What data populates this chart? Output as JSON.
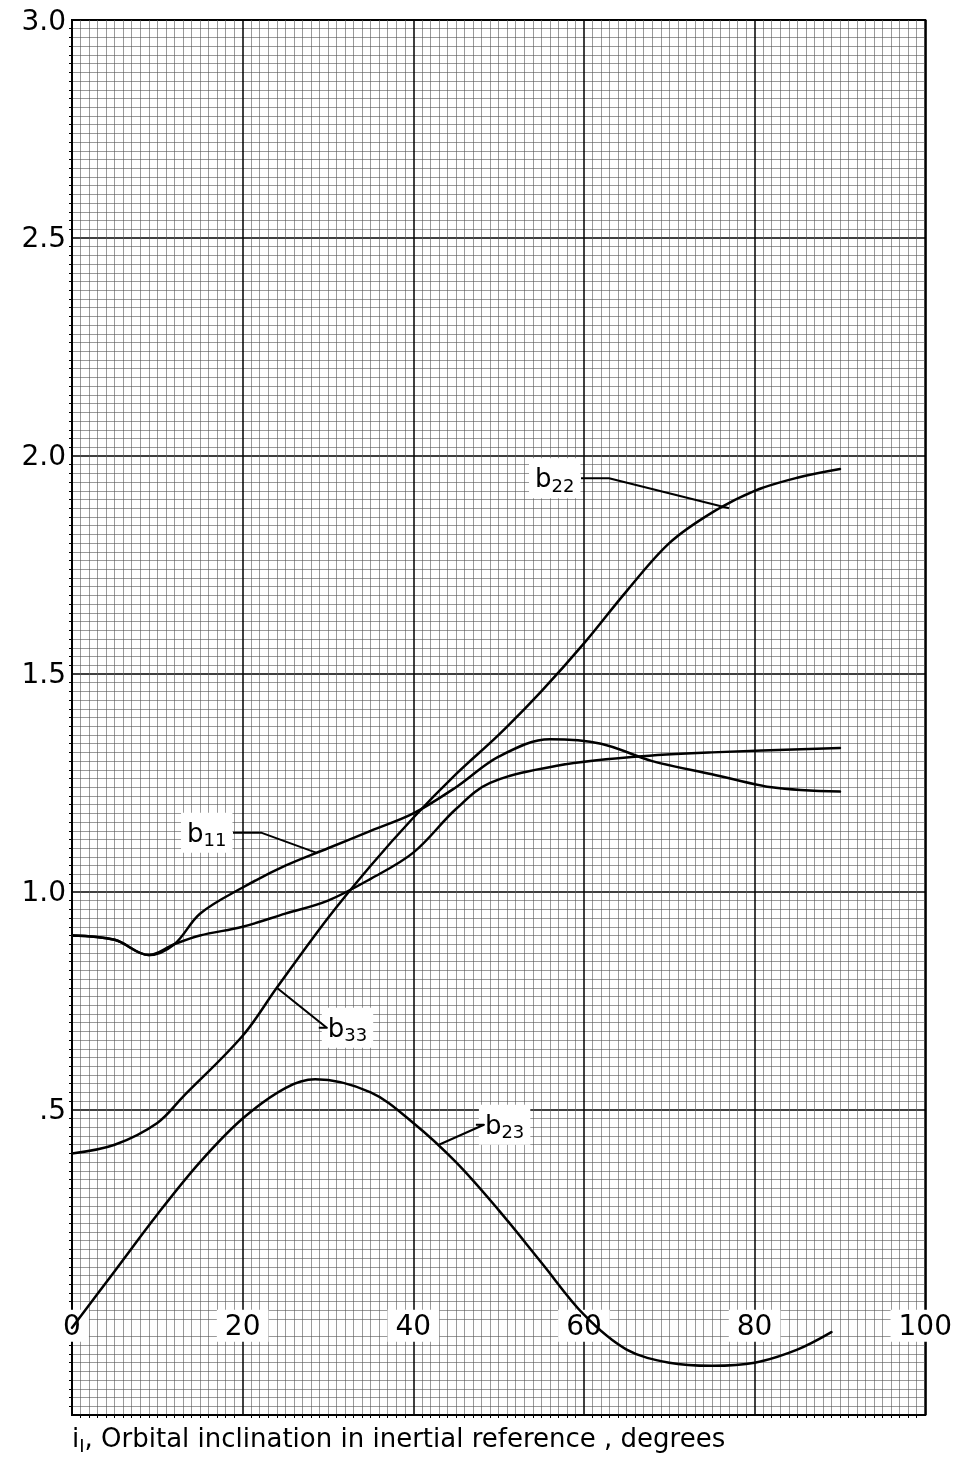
{
  "chart_data": {
    "type": "line",
    "xlabel": "i$_{I}$, Orbital inclination in inertial reference , degrees",
    "xlim": [
      0,
      100
    ],
    "xticks": [
      0,
      20,
      40,
      60,
      80,
      100
    ],
    "ylim": [
      -0.2,
      3.0
    ],
    "yticks": [
      {
        "value": 0.5,
        "label": ".5"
      },
      {
        "value": 1.0,
        "label": "1.0"
      },
      {
        "value": 1.5,
        "label": "1.5"
      },
      {
        "value": 2.0,
        "label": "2.0"
      },
      {
        "value": 2.5,
        "label": "2.5"
      },
      {
        "value": 3.0,
        "label": "3.0"
      }
    ],
    "grid": true,
    "marker": "none",
    "line_style": "solid",
    "series": [
      {
        "color": "#000000",
        "x": [
          0,
          5,
          9,
          12,
          15,
          20,
          25,
          30,
          35,
          40,
          45,
          50,
          56,
          62,
          68,
          75,
          82,
          90
        ],
        "values": [
          0.9,
          0.89,
          0.855,
          0.88,
          0.95,
          1.01,
          1.06,
          1.1,
          1.14,
          1.18,
          1.24,
          1.31,
          1.35,
          1.34,
          1.3,
          1.27,
          1.24,
          1.23
        ]
      },
      {
        "color": "#000000",
        "x": [
          0,
          5,
          9,
          12,
          15,
          20,
          25,
          30,
          35,
          40,
          45,
          49,
          57,
          66,
          75,
          90
        ],
        "values": [
          0.9,
          0.89,
          0.855,
          0.88,
          0.9,
          0.92,
          0.95,
          0.98,
          1.03,
          1.09,
          1.19,
          1.25,
          1.29,
          1.31,
          1.32,
          1.33
        ]
      },
      {
        "color": "#000000",
        "x": [
          0,
          5,
          10,
          13,
          20,
          24,
          30,
          35,
          40,
          45,
          50,
          55,
          60,
          65,
          70,
          75,
          80,
          85,
          90
        ],
        "values": [
          0.4,
          0.42,
          0.47,
          0.53,
          0.67,
          0.78,
          0.94,
          1.06,
          1.17,
          1.27,
          1.36,
          1.46,
          1.57,
          1.69,
          1.8,
          1.87,
          1.92,
          1.95,
          1.97
        ]
      },
      {
        "color": "#000000",
        "x": [
          0,
          5,
          10,
          15,
          20,
          25,
          28.5,
          35,
          40,
          45,
          50,
          55,
          60,
          65,
          70,
          75,
          80,
          85,
          89
        ],
        "values": [
          0,
          0.13,
          0.26,
          0.38,
          0.48,
          0.55,
          0.57,
          0.54,
          0.47,
          0.38,
          0.27,
          0.15,
          0.03,
          -0.05,
          -0.08,
          -0.087,
          -0.08,
          -0.05,
          -0.01
        ]
      }
    ],
    "annotations": [
      {
        "text": "b$_{11}$",
        "x": 28.6,
        "y": 1.09
      },
      {
        "text": "b$_{22}$",
        "x": 77,
        "y": 1.88
      },
      {
        "text": "b$_{33}$",
        "x": 24,
        "y": 0.78
      },
      {
        "text": "b$_{23}$",
        "x": 43,
        "y": 0.42
      }
    ]
  }
}
